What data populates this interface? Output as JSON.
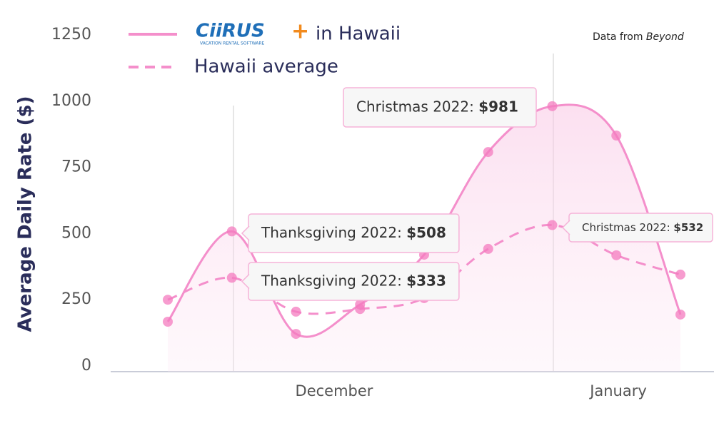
{
  "chart_data": {
    "type": "line",
    "y_label": "Average Daily Rate ($)",
    "source": "Data from",
    "source_name": "Beyond",
    "brand": {
      "name": "CiiRUS",
      "mark": "+",
      "tagline": "VACATION RENTAL SOFTWARE"
    },
    "categories": [
      null,
      null,
      null,
      null,
      null,
      null,
      null,
      null,
      null
    ],
    "month_labels": [
      "December",
      "January"
    ],
    "ylim": [
      0,
      1250
    ],
    "yticks": [
      0,
      250,
      500,
      750,
      1000,
      1250
    ],
    "series": [
      {
        "name": "in Hawaii",
        "color": "#f48fcb",
        "dash": false,
        "values": [
          167,
          508,
          121,
          232,
          420,
          808,
          981,
          870,
          194
        ],
        "callouts": [
          null,
          "Thanksgiving 2022:",
          null,
          null,
          null,
          null,
          "Christmas 2022:",
          null,
          null
        ],
        "value_labels": [
          null,
          "$508",
          null,
          null,
          null,
          null,
          "$981",
          null,
          null
        ]
      },
      {
        "name": "Hawaii average",
        "color": "#f48fcb",
        "dash": true,
        "values": [
          250,
          333,
          205,
          215,
          256,
          442,
          532,
          418,
          345
        ],
        "callouts": [
          null,
          "Thanksgiving 2022:",
          null,
          null,
          null,
          null,
          "Christmas 2022:",
          null,
          null
        ],
        "value_labels": [
          null,
          "$333",
          null,
          null,
          null,
          null,
          "$532",
          null,
          null
        ]
      }
    ]
  }
}
